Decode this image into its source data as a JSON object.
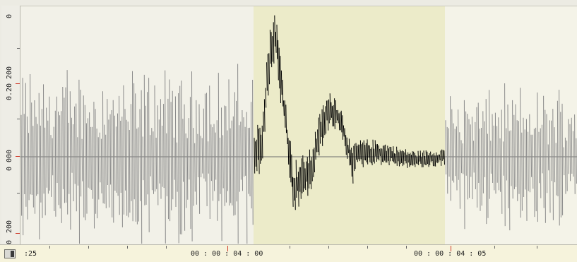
{
  "amplitude_ruler": {
    "labels": [
      "0",
      "200",
      "0.20",
      "000",
      "0",
      "200",
      "0"
    ]
  },
  "time_ruler": {
    "labels": [
      ":25",
      "00 : 00 : 04 : 00",
      "00 : 00 : 04 : 05"
    ]
  },
  "colors": {
    "unselected_waveform": "#8a8a8a",
    "selected_waveform": "#000000",
    "selection_background": "#ecebc9",
    "panel_background": "#f2f1e8",
    "marker_red": "#d03a2a"
  }
}
